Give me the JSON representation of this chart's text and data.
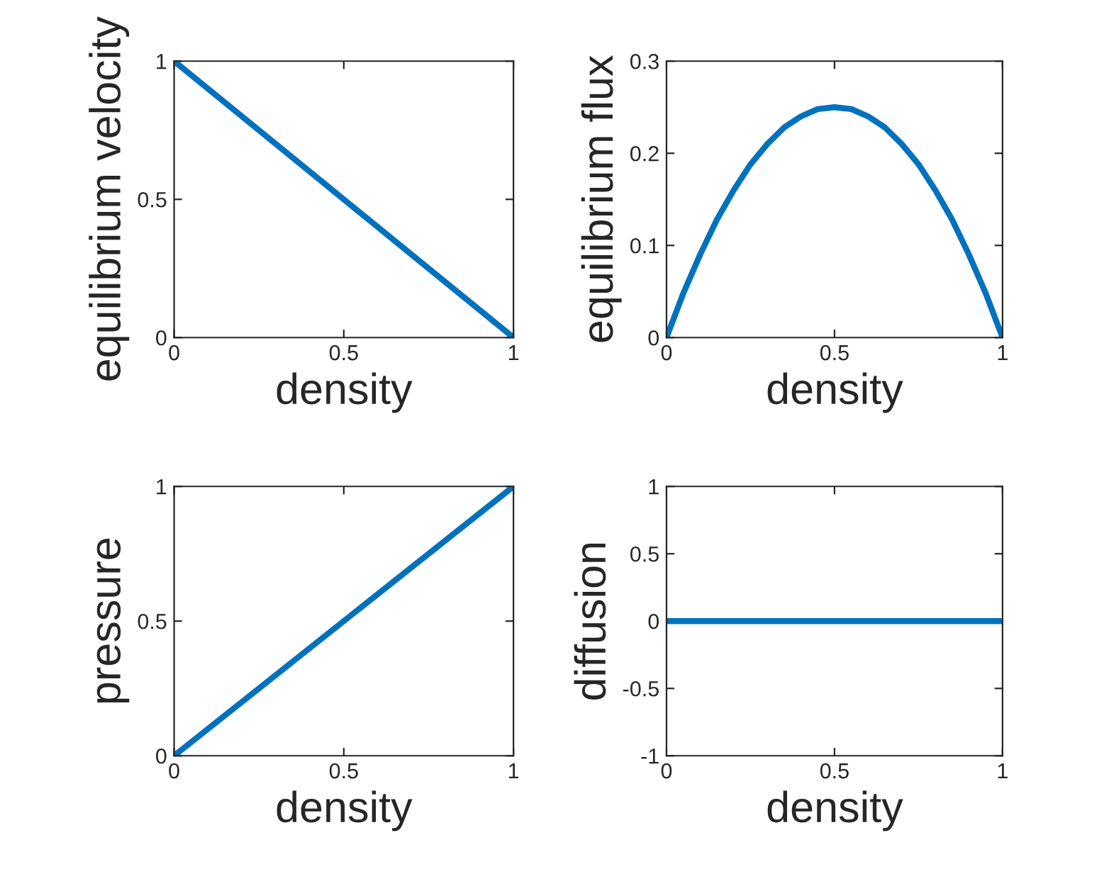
{
  "chart_data": [
    {
      "type": "line",
      "xlabel": "density",
      "ylabel": "equilibrium velocity",
      "x": [
        0,
        1
      ],
      "series": [
        {
          "color": "#0072bd",
          "values": [
            1,
            0
          ]
        }
      ],
      "xlim": [
        0,
        1
      ],
      "ylim": [
        0,
        1
      ],
      "xticks": [
        0,
        0.5,
        1
      ],
      "yticks": [
        0,
        0.5,
        1
      ],
      "grid": false,
      "legend": false
    },
    {
      "type": "line",
      "xlabel": "density",
      "ylabel": "equilibrium flux",
      "x": [
        0,
        0.05,
        0.1,
        0.15,
        0.2,
        0.25,
        0.3,
        0.35,
        0.4,
        0.45,
        0.5,
        0.55,
        0.6,
        0.65,
        0.7,
        0.75,
        0.8,
        0.85,
        0.9,
        0.95,
        1
      ],
      "series": [
        {
          "color": "#0072bd",
          "values": [
            0,
            0.048,
            0.09,
            0.128,
            0.16,
            0.188,
            0.21,
            0.228,
            0.24,
            0.248,
            0.25,
            0.248,
            0.24,
            0.228,
            0.21,
            0.188,
            0.16,
            0.128,
            0.09,
            0.048,
            0
          ]
        }
      ],
      "xlim": [
        0,
        1
      ],
      "ylim": [
        0,
        0.3
      ],
      "xticks": [
        0,
        0.5,
        1
      ],
      "yticks": [
        0,
        0.1,
        0.2,
        0.3
      ],
      "grid": false,
      "legend": false
    },
    {
      "type": "line",
      "xlabel": "density",
      "ylabel": "pressure",
      "x": [
        0,
        1
      ],
      "series": [
        {
          "color": "#0072bd",
          "values": [
            0,
            1
          ]
        }
      ],
      "xlim": [
        0,
        1
      ],
      "ylim": [
        0,
        1
      ],
      "xticks": [
        0,
        0.5,
        1
      ],
      "yticks": [
        0,
        0.5,
        1
      ],
      "grid": false,
      "legend": false
    },
    {
      "type": "line",
      "xlabel": "density",
      "ylabel": "diffusion",
      "x": [
        0,
        1
      ],
      "series": [
        {
          "color": "#0072bd",
          "values": [
            0,
            0
          ]
        }
      ],
      "xlim": [
        0,
        1
      ],
      "ylim": [
        -1,
        1
      ],
      "xticks": [
        0,
        0.5,
        1
      ],
      "yticks": [
        -1,
        -0.5,
        0,
        0.5,
        1
      ],
      "grid": false,
      "legend": false
    }
  ]
}
